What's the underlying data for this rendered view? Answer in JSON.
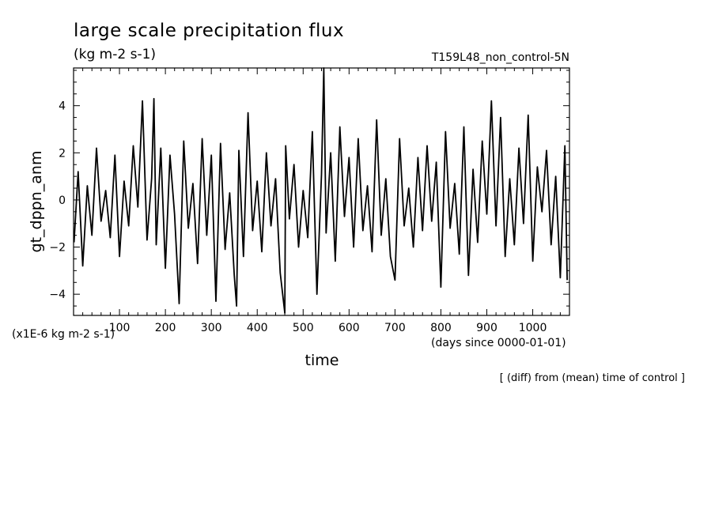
{
  "chart_data": {
    "type": "line",
    "title": "large scale precipitation flux",
    "units": "(kg m-2 s-1)",
    "run_label": "T159L48_non_control-5N",
    "xlabel": "time",
    "ylabel": "gt_dppn_anm",
    "x_units": "(days since 0000-01-01)",
    "y_scale_note": "(x1E-6 kg m-2 s-1)",
    "footnote": "[ (diff) from (mean) time of control ]",
    "xlim": [
      0,
      1080
    ],
    "ylim": [
      -4.9,
      5.6
    ],
    "xticks": [
      100,
      200,
      300,
      400,
      500,
      600,
      700,
      800,
      900,
      1000
    ],
    "yticks": [
      -4,
      -2,
      0,
      2,
      4
    ],
    "xtick_labels": [
      "100",
      "200",
      "300",
      "400",
      "500",
      "600",
      "700",
      "800",
      "900",
      "1000"
    ],
    "ytick_labels": [
      "−4",
      "−2",
      "0",
      "2",
      "4"
    ],
    "series": [
      {
        "color": "#000000",
        "x": [
          1,
          10,
          20,
          30,
          40,
          50,
          60,
          70,
          80,
          90,
          100,
          110,
          120,
          130,
          140,
          150,
          160,
          170,
          175,
          180,
          190,
          200,
          210,
          220,
          230,
          240,
          250,
          260,
          270,
          280,
          290,
          300,
          310,
          320,
          330,
          340,
          350,
          355,
          360,
          370,
          380,
          390,
          400,
          410,
          420,
          430,
          440,
          450,
          460,
          462,
          470,
          480,
          490,
          500,
          510,
          520,
          530,
          540,
          545,
          550,
          560,
          570,
          580,
          590,
          600,
          610,
          620,
          630,
          640,
          650,
          660,
          670,
          680,
          690,
          700,
          710,
          720,
          730,
          740,
          750,
          760,
          770,
          780,
          790,
          800,
          810,
          820,
          830,
          840,
          850,
          860,
          870,
          880,
          890,
          900,
          910,
          920,
          930,
          940,
          950,
          960,
          970,
          980,
          990,
          1000,
          1010,
          1020,
          1030,
          1040,
          1050,
          1060,
          1070,
          1075
        ],
        "y": [
          -1.8,
          1.2,
          -2.8,
          0.6,
          -1.5,
          2.2,
          -0.9,
          0.4,
          -1.6,
          1.9,
          -2.4,
          0.8,
          -1.1,
          2.3,
          -0.3,
          4.2,
          -1.7,
          0.9,
          4.3,
          -1.9,
          2.2,
          -2.9,
          1.9,
          -0.6,
          -4.4,
          2.5,
          -1.2,
          0.7,
          -2.7,
          2.6,
          -1.5,
          1.9,
          -4.3,
          2.4,
          -2.1,
          0.3,
          -3.2,
          -4.5,
          2.1,
          -2.4,
          3.7,
          -1.3,
          0.8,
          -2.2,
          2.0,
          -1.1,
          0.9,
          -3.1,
          -4.8,
          2.3,
          -0.8,
          1.5,
          -2.0,
          0.4,
          -1.6,
          2.9,
          -4.0,
          1.1,
          5.6,
          -1.4,
          2.0,
          -2.6,
          3.1,
          -0.7,
          1.8,
          -2.0,
          2.6,
          -1.3,
          0.6,
          -2.2,
          3.4,
          -1.5,
          0.9,
          -2.4,
          -3.4,
          2.6,
          -1.1,
          0.5,
          -2.0,
          1.8,
          -1.3,
          2.3,
          -0.9,
          1.6,
          -3.7,
          2.9,
          -1.2,
          0.7,
          -2.3,
          3.1,
          -3.2,
          1.3,
          -1.8,
          2.5,
          -0.6,
          4.2,
          -1.1,
          3.5,
          -2.4,
          0.9,
          -1.9,
          2.2,
          -1.0,
          3.6,
          -2.6,
          1.4,
          -0.5,
          2.1,
          -1.9,
          1.0,
          -3.3,
          2.3,
          -3.4
        ]
      }
    ]
  }
}
